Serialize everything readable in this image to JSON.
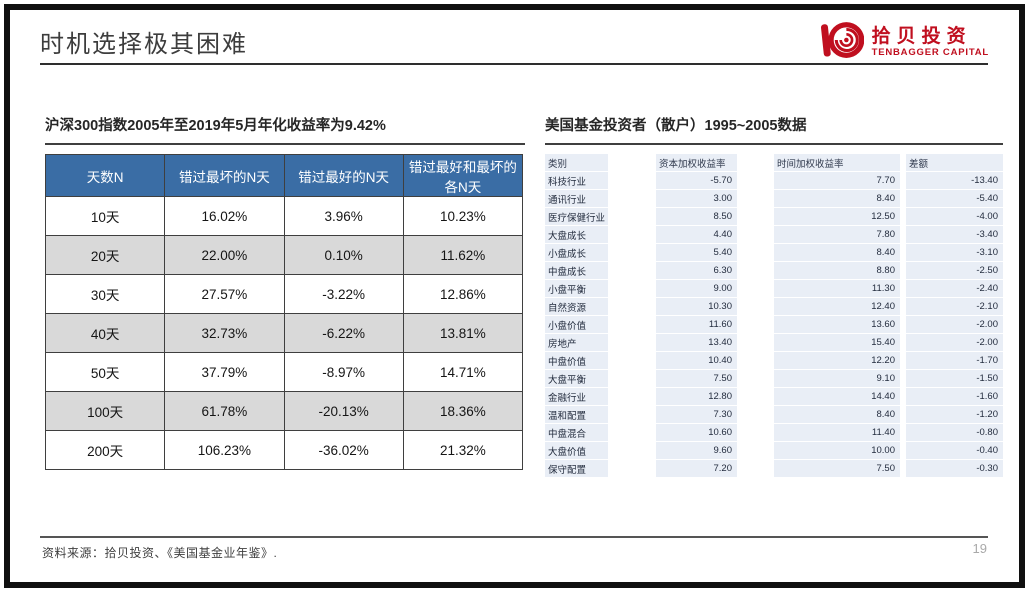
{
  "slide": {
    "title": "时机选择极其困难",
    "page_number": "19",
    "footer_source": "资料来源：拾贝投资、《美国基金业年鉴》."
  },
  "logo": {
    "cn": "拾贝投资",
    "en": "TENBAGGER CAPITAL",
    "accent_color": "#c00f1f"
  },
  "left_table": {
    "title": "沪深300指数2005年至2019年5月年化收益率为9.42%",
    "headers": [
      "天数N",
      "错过最坏的N天",
      "错过最好的N天",
      "错过最好和最坏的各N天"
    ],
    "rows": [
      [
        "10天",
        "16.02%",
        "3.96%",
        "10.23%"
      ],
      [
        "20天",
        "22.00%",
        "0.10%",
        "11.62%"
      ],
      [
        "30天",
        "27.57%",
        "-3.22%",
        "12.86%"
      ],
      [
        "40天",
        "32.73%",
        "-6.22%",
        "13.81%"
      ],
      [
        "50天",
        "37.79%",
        "-8.97%",
        "14.71%"
      ],
      [
        "100天",
        "61.78%",
        "-20.13%",
        "18.36%"
      ],
      [
        "200天",
        "106.23%",
        "-36.02%",
        "21.32%"
      ]
    ],
    "header_bg": "#3a6da5",
    "stripe_bg": "#d9d9d9"
  },
  "right_table": {
    "title": "美国基金投资者（散户）1995~2005数据",
    "headers": [
      "类别",
      "资本加权收益率",
      "时间加权收益率",
      "差额"
    ],
    "rows": [
      [
        "科技行业",
        "-5.70",
        "7.70",
        "-13.40"
      ],
      [
        "通讯行业",
        "3.00",
        "8.40",
        "-5.40"
      ],
      [
        "医疗保健行业",
        "8.50",
        "12.50",
        "-4.00"
      ],
      [
        "大盘成长",
        "4.40",
        "7.80",
        "-3.40"
      ],
      [
        "小盘成长",
        "5.40",
        "8.40",
        "-3.10"
      ],
      [
        "中盘成长",
        "6.30",
        "8.80",
        "-2.50"
      ],
      [
        "小盘平衡",
        "9.00",
        "11.30",
        "-2.40"
      ],
      [
        "自然资源",
        "10.30",
        "12.40",
        "-2.10"
      ],
      [
        "小盘价值",
        "11.60",
        "13.60",
        "-2.00"
      ],
      [
        "房地产",
        "13.40",
        "15.40",
        "-2.00"
      ],
      [
        "中盘价值",
        "10.40",
        "12.20",
        "-1.70"
      ],
      [
        "大盘平衡",
        "7.50",
        "9.10",
        "-1.50"
      ],
      [
        "金融行业",
        "12.80",
        "14.40",
        "-1.60"
      ],
      [
        "温和配置",
        "7.30",
        "8.40",
        "-1.20"
      ],
      [
        "中盘混合",
        "10.60",
        "11.40",
        "-0.80"
      ],
      [
        "大盘价值",
        "9.60",
        "10.00",
        "-0.40"
      ],
      [
        "保守配置",
        "7.20",
        "7.50",
        "-0.30"
      ]
    ],
    "cell_bg": "#e9eef6"
  }
}
